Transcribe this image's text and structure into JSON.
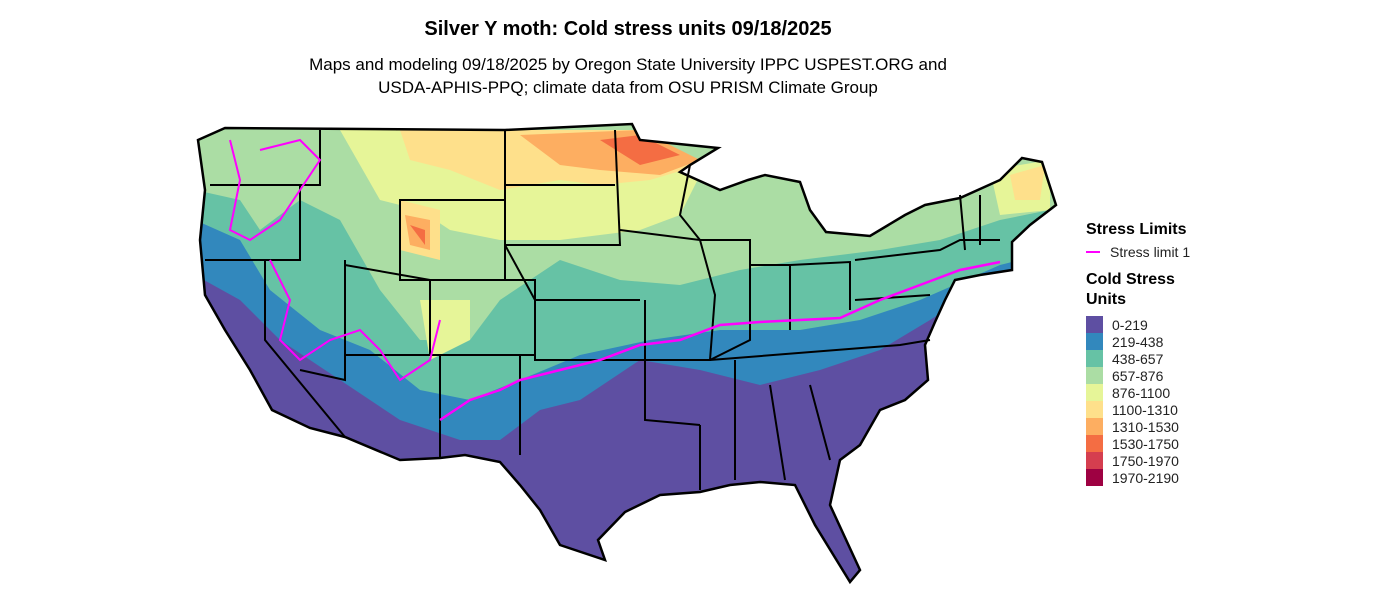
{
  "title": "Silver Y moth: Cold stress units 09/18/2025",
  "subtitle_lines": [
    "Maps and modeling 09/18/2025 by Oregon State University IPPC USPEST.ORG and",
    "USDA-APHIS-PPQ; climate data from OSU PRISM Climate Group"
  ],
  "legend": {
    "limits_title": "Stress Limits",
    "limits": [
      {
        "label": "Stress limit 1",
        "color": "#ff00ff"
      }
    ],
    "units_title_lines": [
      "Cold Stress",
      "Units"
    ],
    "classes": [
      {
        "label": "0-219",
        "color": "#5E4FA2"
      },
      {
        "label": "219-438",
        "color": "#3288BD"
      },
      {
        "label": "438-657",
        "color": "#66C2A5"
      },
      {
        "label": "657-876",
        "color": "#ABDDA4"
      },
      {
        "label": "876-1100",
        "color": "#E6F598"
      },
      {
        "label": "1100-1310",
        "color": "#FEE08B"
      },
      {
        "label": "1310-1530",
        "color": "#FDAE61"
      },
      {
        "label": "1530-1750",
        "color": "#F46D43"
      },
      {
        "label": "1750-1970",
        "color": "#D53E4F"
      },
      {
        "label": "1970-2190",
        "color": "#9E0142"
      }
    ]
  }
}
